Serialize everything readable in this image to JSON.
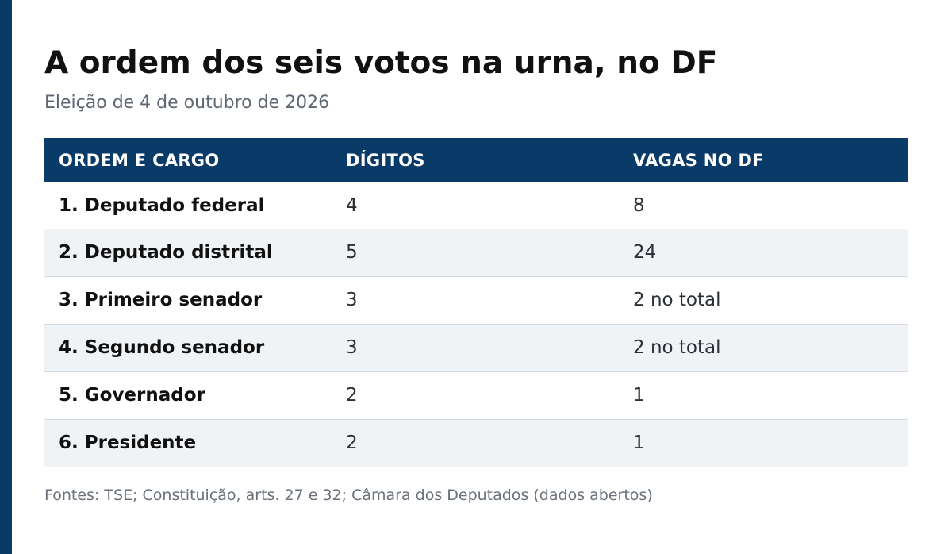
{
  "title": "A ordem dos seis votos na urna, no DF",
  "subtitle": "Eleição de 4 de outubro de 2026",
  "table": {
    "headers": [
      "ORDEM E CARGO",
      "DÍGITOS",
      "VAGAS NO DF"
    ],
    "rows": [
      [
        "1. Deputado federal",
        "4",
        "8"
      ],
      [
        "2. Deputado distrital",
        "5",
        "24"
      ],
      [
        "3. Primeiro senador",
        "3",
        "2 no total"
      ],
      [
        "4. Segundo senador",
        "3",
        "2 no total"
      ],
      [
        "5. Governador",
        "2",
        "1"
      ],
      [
        "6. Presidente",
        "2",
        "1"
      ]
    ]
  },
  "source": "Fontes: TSE; Constituição, arts. 27 e 32; Câmara dos Deputados (dados abertos)",
  "colors": {
    "accent": "#0a3a68",
    "header_text": "#ffffff",
    "row_alt": "#f0f3f6"
  }
}
